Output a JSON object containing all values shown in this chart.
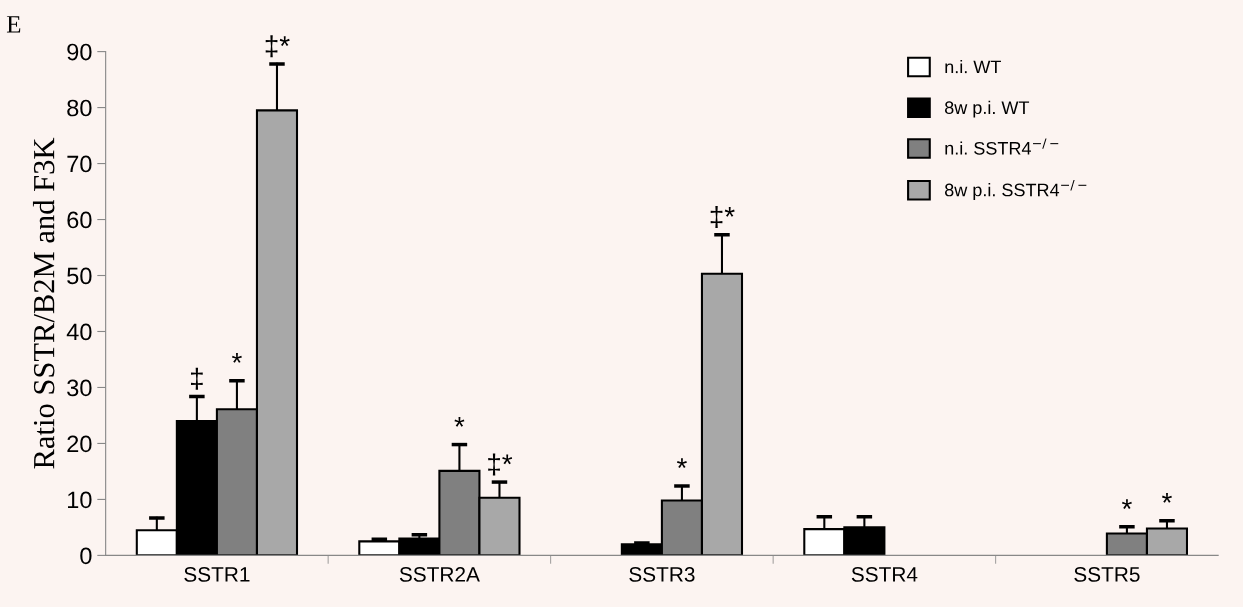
{
  "chart_data": {
    "type": "bar",
    "ylabel": "Ratio SSTR/B2M and F3K",
    "categories": [
      "SSTR1",
      "SSTR2A",
      "SSTR3",
      "SSTR4",
      "SSTR5"
    ],
    "series": [
      {
        "name": "n.i. WT",
        "color": "#ffffff",
        "values": [
          4.5,
          2.5,
          null,
          4.7,
          null
        ],
        "errors": [
          [
            4.5,
            6.7
          ],
          [
            2.5,
            2.9
          ],
          null,
          [
            4.7,
            6.9
          ],
          null
        ],
        "value_labels": [
          null,
          null,
          null,
          null,
          null
        ]
      },
      {
        "name": "8w p.i. WT",
        "color": "#000000",
        "values": [
          24,
          3.0,
          2.0,
          5.0,
          null
        ],
        "errors": [
          [
            24,
            28.4
          ],
          [
            3.0,
            3.7
          ],
          [
            2.0,
            2.2
          ],
          [
            5.0,
            6.9
          ],
          null
        ],
        "value_labels": [
          "‡",
          null,
          null,
          null,
          null
        ]
      },
      {
        "name": "n.i. SSTR4$^{−/−}$",
        "color": "#808080",
        "values": [
          26.1,
          15.1,
          9.8,
          null,
          3.9
        ],
        "errors": [
          [
            26.1,
            31.2
          ],
          [
            15.1,
            19.8
          ],
          [
            9.8,
            12.4
          ],
          null,
          [
            3.9,
            5.1
          ]
        ],
        "value_labels": [
          "*",
          "*",
          "*",
          null,
          "*"
        ]
      },
      {
        "name": "8w p.i. SSTR4$^{−/−}$",
        "color": "#a8a8a8",
        "values": [
          79.5,
          10.3,
          50.3,
          null,
          4.8
        ],
        "errors": [
          [
            79.5,
            87.8
          ],
          [
            10.3,
            13.1
          ],
          [
            50.3,
            57.3
          ],
          null,
          [
            4.8,
            6.2
          ]
        ],
        "value_labels": [
          "‡*",
          "‡*",
          "‡*",
          null,
          "*"
        ]
      }
    ],
    "ylim": [
      0,
      90
    ],
    "yticks": [
      0,
      10,
      20,
      30,
      40,
      50,
      60,
      70,
      80,
      90
    ],
    "legend": "top right",
    "annotations": [
      "E"
    ]
  }
}
